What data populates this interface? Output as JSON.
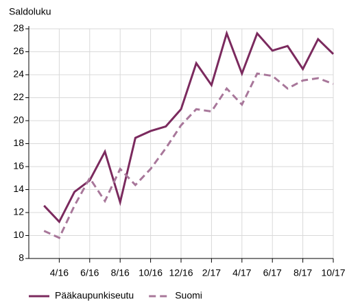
{
  "chart_data": {
    "type": "line",
    "y_label": "Saldoluku",
    "categories": [
      null,
      "4/16",
      null,
      "6/16",
      null,
      "8/16",
      null,
      "10/16",
      null,
      "12/16",
      null,
      "2/17",
      null,
      "4/17",
      null,
      "6/17",
      null,
      "8/17",
      null,
      "10/17"
    ],
    "series": [
      {
        "name": "Pääkaupunkiseutu",
        "color": "#7b2a5e",
        "dashed": false,
        "values": [
          12.6,
          11.2,
          13.8,
          14.8,
          17.3,
          12.9,
          18.5,
          19.1,
          19.5,
          21.0,
          25.0,
          23.1,
          27.6,
          24.1,
          27.6,
          26.1,
          26.5,
          24.5,
          27.1,
          25.8
        ]
      },
      {
        "name": "Suomi",
        "color": "#a8779a",
        "dashed": true,
        "values": [
          10.4,
          9.8,
          12.6,
          15.0,
          13.0,
          15.8,
          14.4,
          15.8,
          17.6,
          19.6,
          21.0,
          20.8,
          22.8,
          21.4,
          24.1,
          23.9,
          22.8,
          23.5,
          23.7,
          23.2
        ]
      }
    ],
    "ylim": [
      8,
      28
    ],
    "yticks": [
      8,
      10,
      12,
      14,
      16,
      18,
      20,
      22,
      24,
      26,
      28
    ],
    "grid": true
  }
}
